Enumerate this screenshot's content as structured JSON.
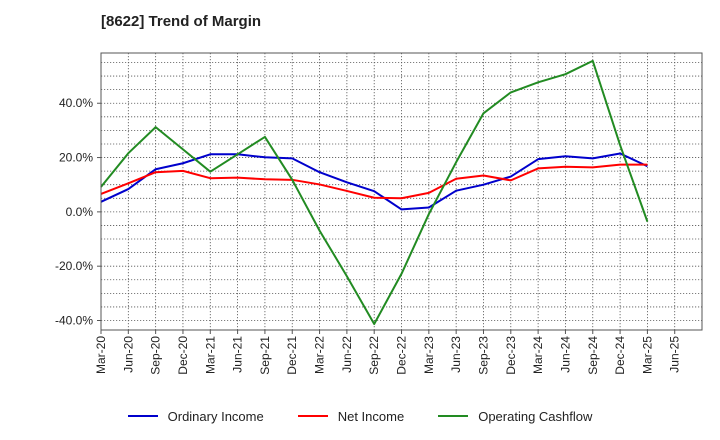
{
  "chart_data": {
    "type": "line",
    "title": "[8622]  Trend of Margin",
    "xlabel": "",
    "ylabel": "",
    "x_ticks": [
      "Mar-20",
      "Jun-20",
      "Sep-20",
      "Dec-20",
      "Mar-21",
      "Jun-21",
      "Sep-21",
      "Dec-21",
      "Mar-22",
      "Jun-22",
      "Sep-22",
      "Dec-22",
      "Mar-23",
      "Jun-23",
      "Sep-23",
      "Dec-23",
      "Mar-24",
      "Jun-24",
      "Sep-24",
      "Dec-24",
      "Mar-25",
      "Jun-25"
    ],
    "y_ticks": [
      "40.0%",
      "20.0%",
      "0.0%",
      "-20.0%",
      "-40.0%"
    ],
    "y_tick_values": [
      40,
      20,
      0,
      -20,
      -40
    ],
    "ylim": [
      -43.5,
      58.5
    ],
    "grid": true,
    "legend_position": "bottom",
    "categories": [
      "Mar-20",
      "Jun-20",
      "Sep-20",
      "Dec-20",
      "Mar-21",
      "Jun-21",
      "Sep-21",
      "Dec-21",
      "Mar-22",
      "Jun-22",
      "Sep-22",
      "Dec-22",
      "Mar-23",
      "Jun-23",
      "Sep-23",
      "Dec-23",
      "Mar-24",
      "Jun-24",
      "Sep-24",
      "Dec-24",
      "Mar-25"
    ],
    "series": [
      {
        "name": "Ordinary Income",
        "color": "#0000cc",
        "values": [
          3.7,
          8.4,
          15.7,
          17.9,
          21.2,
          21.2,
          20.1,
          19.7,
          14.6,
          10.9,
          7.6,
          0.9,
          1.6,
          7.8,
          10.0,
          13.0,
          19.4,
          20.5,
          19.7,
          21.5,
          16.8
        ]
      },
      {
        "name": "Net Income",
        "color": "#ff0000",
        "values": [
          6.6,
          10.5,
          14.6,
          15.1,
          12.4,
          12.6,
          12.0,
          11.8,
          10.1,
          7.7,
          5.2,
          5.0,
          7.0,
          12.2,
          13.4,
          11.6,
          16.0,
          16.6,
          16.4,
          17.4,
          17.4
        ]
      },
      {
        "name": "Operating Cashflow",
        "color": "#228b22",
        "values": [
          9.2,
          21.6,
          31.2,
          23.0,
          14.8,
          21.2,
          27.6,
          11.8,
          -6.9,
          -23.7,
          -41.3,
          -22.8,
          -0.8,
          18.3,
          36.3,
          44.0,
          47.7,
          50.7,
          55.6,
          24.6,
          -3.6
        ]
      }
    ]
  }
}
